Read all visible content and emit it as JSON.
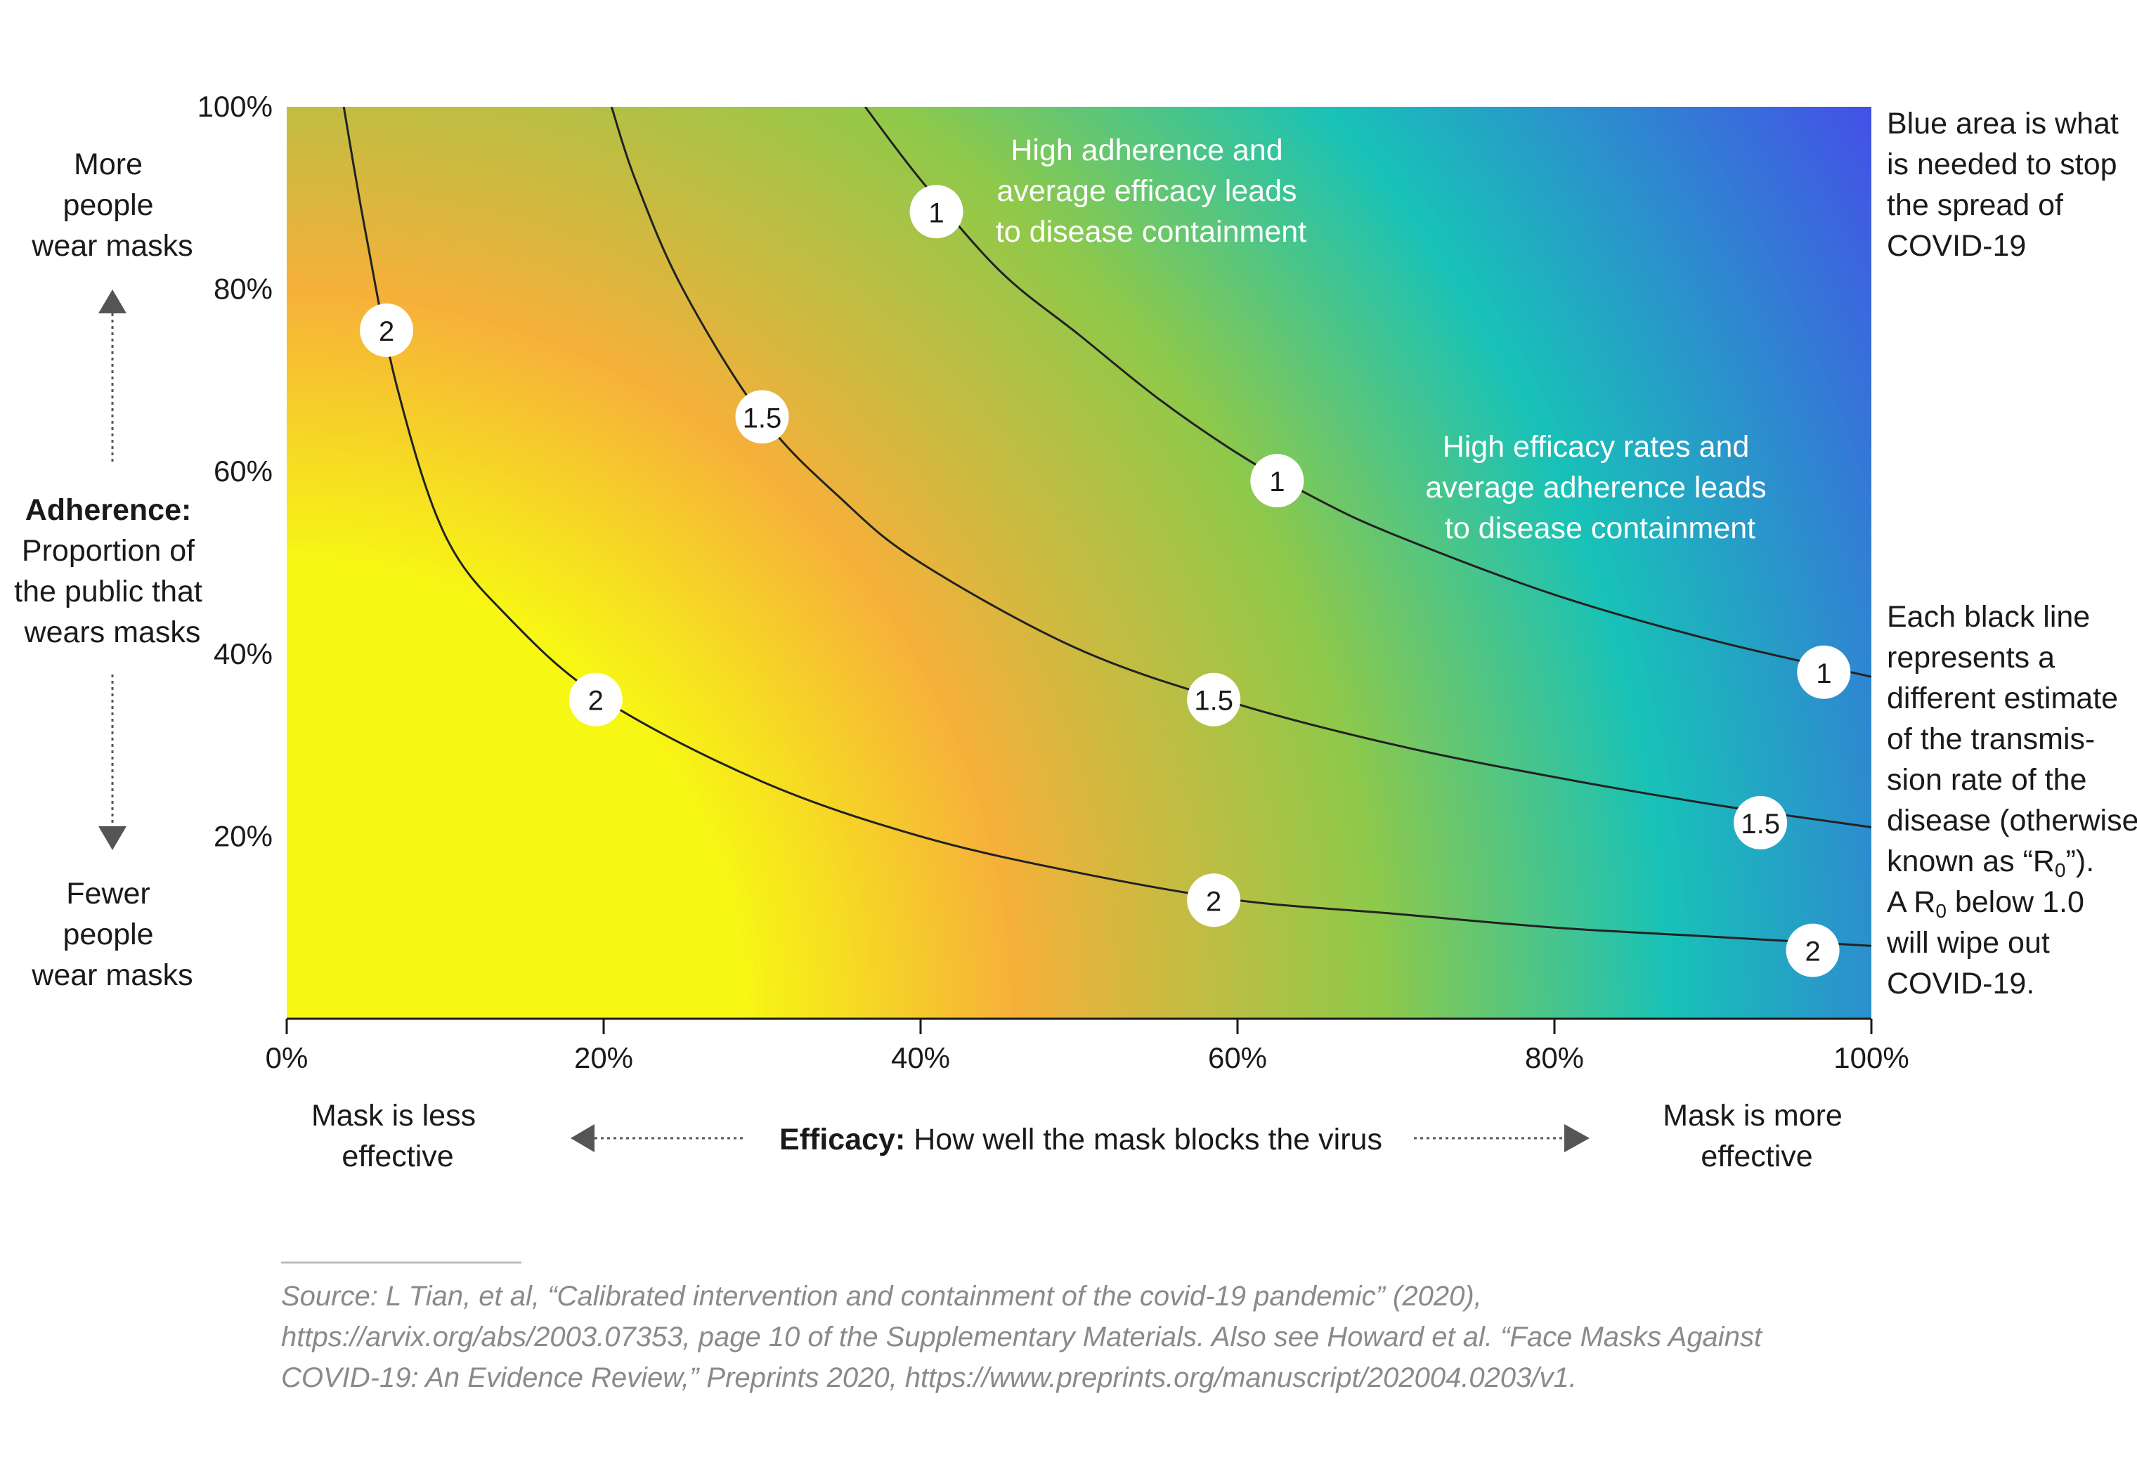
{
  "chart_data": {
    "type": "line",
    "title": "",
    "xlabel_bold": "Efficacy:",
    "xlabel_rest": " How well the mask blocks the virus",
    "ylabel_lines": [
      "Adherence:",
      "Proportion of",
      "the public that",
      "wears masks"
    ],
    "xlim": [
      0,
      100
    ],
    "ylim": [
      0,
      100
    ],
    "x_ticks": [
      "0%",
      "20%",
      "40%",
      "60%",
      "80%",
      "100%"
    ],
    "y_ticks": [
      "20%",
      "40%",
      "60%",
      "80%",
      "100%"
    ],
    "x_tick_values": [
      0,
      20,
      40,
      60,
      80,
      100
    ],
    "y_tick_values": [
      20,
      40,
      60,
      80,
      100
    ],
    "series": [
      {
        "label": "2",
        "x": [
          3.6,
          5.0,
          7.0,
          10.0,
          14.0,
          20.0,
          30.0,
          40.0,
          50.0,
          60.0,
          70.0,
          80.0,
          90.0,
          100.0
        ],
        "y": [
          100.0,
          86.0,
          69.0,
          53.0,
          44.0,
          35.0,
          26.0,
          20.0,
          16.0,
          13.0,
          11.5,
          10.0,
          9.0,
          8.0
        ],
        "label_positions": [
          [
            6.3,
            75.5
          ],
          [
            19.5,
            35.0
          ],
          [
            58.5,
            13.0
          ],
          [
            96.3,
            7.5
          ]
        ]
      },
      {
        "label": "1.5",
        "x": [
          20.5,
          22.0,
          25.0,
          30.0,
          35.0,
          40.0,
          50.0,
          60.0,
          70.0,
          80.0,
          90.0,
          100.0
        ],
        "y": [
          100.0,
          92.0,
          80.0,
          66.0,
          57.0,
          50.0,
          40.5,
          34.5,
          30.0,
          26.5,
          23.5,
          21.0
        ],
        "label_positions": [
          [
            30.0,
            66.0
          ],
          [
            58.5,
            35.0
          ],
          [
            93.0,
            21.5
          ]
        ]
      },
      {
        "label": "1",
        "x": [
          36.5,
          40.0,
          45.0,
          50.0,
          55.0,
          60.0,
          65.0,
          70.0,
          80.0,
          90.0,
          100.0
        ],
        "y": [
          100.0,
          92.0,
          82.0,
          75.0,
          68.0,
          62.0,
          57.0,
          53.0,
          46.5,
          41.5,
          37.5
        ],
        "label_positions": [
          [
            41.0,
            88.5
          ],
          [
            62.5,
            59.0
          ],
          [
            97.0,
            38.0
          ]
        ]
      }
    ],
    "annotations": {
      "top_in_plot": [
        "High adherence and",
        "average efficacy leads",
        "to disease containment"
      ],
      "mid_in_plot": [
        "High efficacy rates and",
        "average adherence leads",
        "to disease containment"
      ],
      "right_top": [
        "Blue area is what",
        "is needed to stop",
        "the spread of",
        "COVID-19"
      ],
      "right_bottom_lines": [
        "Each black line",
        "represents a",
        "different estimate",
        "of the transmis-",
        "sion rate of the",
        "disease (otherwise",
        "known as “R"
      ],
      "right_bottom_tail": [
        "”).",
        "A R",
        " below 1.0",
        "will wipe out",
        "COVID-19."
      ],
      "subscript": "0",
      "more_people": [
        "More",
        "people",
        "wear masks"
      ],
      "fewer_people": [
        "Fewer",
        "people",
        "wear masks"
      ],
      "mask_less": [
        "Mask is less",
        "effective"
      ],
      "mask_more": [
        "Mask is more",
        "effective"
      ]
    },
    "colormap": {
      "low": "#f7f714",
      "mid_orange": "#f6b03a",
      "mid_green": "#8fc94a",
      "teal": "#18c2b8",
      "high": "#4352e6"
    },
    "grid": false,
    "legend": "none"
  },
  "source": {
    "lines": [
      "Source: L Tian, et al, “Calibrated intervention and containment of the covid-19 pandemic” (2020),",
      "https://arvix.org/abs/2003.07353, page 10 of the Supplementary Materials. Also see Howard et al. “Face Masks Against",
      "COVID-19: An Evidence Review,” Preprints 2020, https://www.preprints.org/manuscript/202004.0203/v1."
    ]
  }
}
